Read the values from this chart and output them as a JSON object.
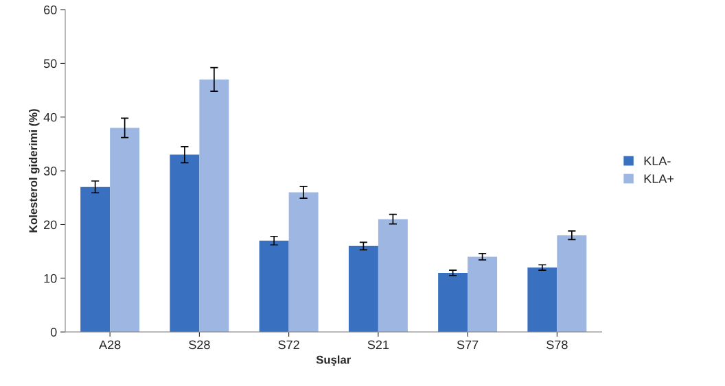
{
  "chart_data": {
    "type": "bar",
    "xlabel": "Suşlar",
    "ylabel": "Kolesterol giderimi (%)",
    "categories": [
      "A28",
      "S28",
      "S72",
      "S21",
      "S77",
      "S78"
    ],
    "series": [
      {
        "name": "KLA-",
        "color": "#3a70c0",
        "values": [
          27,
          33,
          17,
          16,
          11,
          12
        ],
        "errors": [
          1.1,
          1.5,
          0.8,
          0.7,
          0.5,
          0.5
        ]
      },
      {
        "name": "KLA+",
        "color": "#9db7e2",
        "values": [
          38,
          47,
          26,
          21,
          14,
          18
        ],
        "errors": [
          1.8,
          2.2,
          1.1,
          0.9,
          0.6,
          0.8
        ]
      }
    ],
    "ylim": [
      0,
      60
    ],
    "yticks": [
      0,
      10,
      20,
      30,
      40,
      50,
      60
    ],
    "grid": false,
    "legend": "right"
  }
}
